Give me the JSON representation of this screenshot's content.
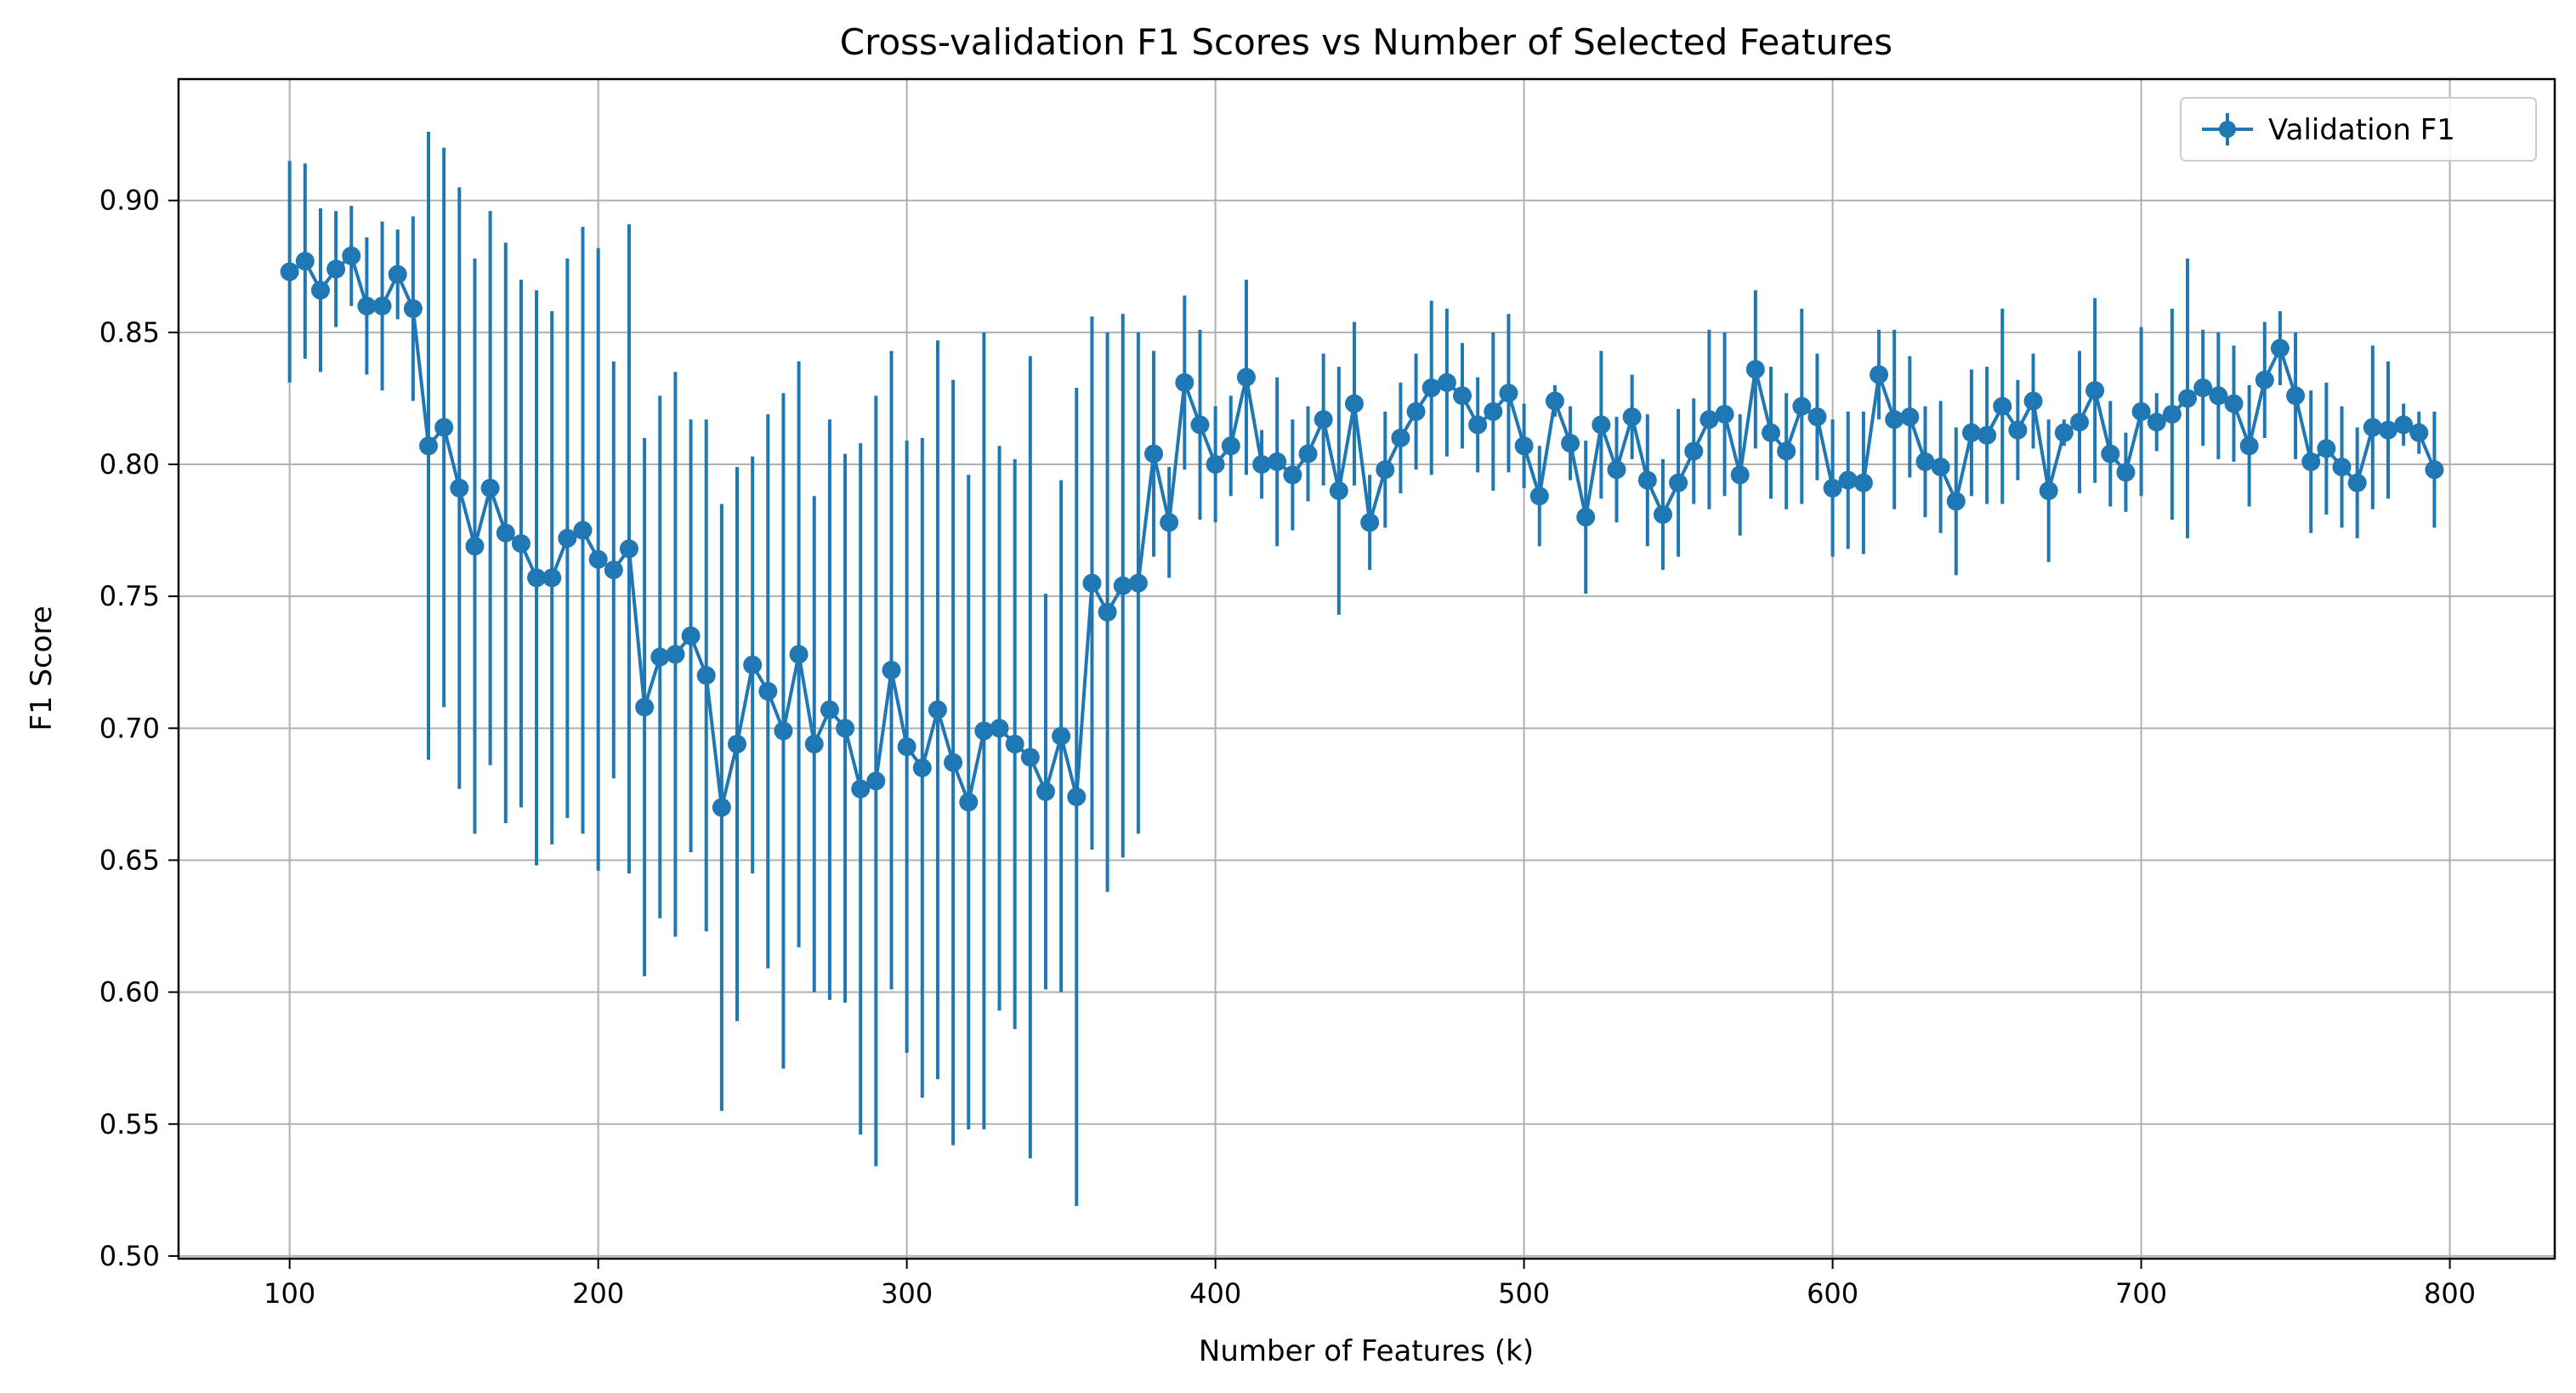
{
  "chart_data": {
    "type": "line",
    "title": "Cross-validation F1 Scores vs Number of Selected Features",
    "xlabel": "Number of Features (k)",
    "ylabel": "F1 Score",
    "xlim": [
      64,
      834
    ],
    "ylim": [
      0.499,
      0.946
    ],
    "xticks": [
      100,
      200,
      300,
      400,
      500,
      600,
      700,
      800
    ],
    "yticks": [
      0.5,
      0.55,
      0.6,
      0.65,
      0.7,
      0.75,
      0.8,
      0.85,
      0.9
    ],
    "grid": true,
    "legend_position": "top-right",
    "series": [
      {
        "name": "Validation F1",
        "color": "#1f77b4",
        "marker": "circle",
        "error_bars": true,
        "x": [
          100,
          105,
          110,
          115,
          120,
          125,
          130,
          135,
          140,
          145,
          150,
          155,
          160,
          165,
          170,
          175,
          180,
          185,
          190,
          195,
          200,
          205,
          210,
          215,
          220,
          225,
          230,
          235,
          240,
          245,
          250,
          255,
          260,
          265,
          270,
          275,
          280,
          285,
          290,
          295,
          300,
          305,
          310,
          315,
          320,
          325,
          330,
          335,
          340,
          345,
          350,
          355,
          360,
          365,
          370,
          375,
          380,
          385,
          390,
          395,
          400,
          405,
          410,
          415,
          420,
          425,
          430,
          435,
          440,
          445,
          450,
          455,
          460,
          465,
          470,
          475,
          480,
          485,
          490,
          495,
          500,
          505,
          510,
          515,
          520,
          525,
          530,
          535,
          540,
          545,
          550,
          555,
          560,
          565,
          570,
          575,
          580,
          585,
          590,
          595,
          600,
          605,
          610,
          615,
          620,
          625,
          630,
          635,
          640,
          645,
          650,
          655,
          660,
          665,
          670,
          675,
          680,
          685,
          690,
          695,
          700,
          705,
          710,
          715,
          720,
          725,
          730,
          735,
          740,
          745,
          750,
          755,
          760,
          765,
          770,
          775,
          780,
          785,
          790,
          795
        ],
        "y": [
          0.873,
          0.877,
          0.866,
          0.874,
          0.879,
          0.86,
          0.86,
          0.872,
          0.859,
          0.807,
          0.814,
          0.791,
          0.769,
          0.791,
          0.774,
          0.77,
          0.757,
          0.757,
          0.772,
          0.775,
          0.764,
          0.76,
          0.768,
          0.708,
          0.727,
          0.728,
          0.735,
          0.72,
          0.67,
          0.694,
          0.724,
          0.714,
          0.699,
          0.728,
          0.694,
          0.707,
          0.7,
          0.677,
          0.68,
          0.722,
          0.693,
          0.685,
          0.707,
          0.687,
          0.672,
          0.699,
          0.7,
          0.694,
          0.689,
          0.676,
          0.697,
          0.674,
          0.755,
          0.744,
          0.754,
          0.755,
          0.804,
          0.778,
          0.831,
          0.815,
          0.8,
          0.807,
          0.833,
          0.8,
          0.801,
          0.796,
          0.804,
          0.817,
          0.79,
          0.823,
          0.778,
          0.798,
          0.81,
          0.82,
          0.829,
          0.831,
          0.826,
          0.815,
          0.82,
          0.827,
          0.807,
          0.788,
          0.824,
          0.808,
          0.78,
          0.815,
          0.798,
          0.818,
          0.794,
          0.781,
          0.793,
          0.805,
          0.817,
          0.819,
          0.796,
          0.836,
          0.812,
          0.805,
          0.822,
          0.818,
          0.791,
          0.794,
          0.793,
          0.834,
          0.817,
          0.818,
          0.801,
          0.799,
          0.786,
          0.812,
          0.811,
          0.822,
          0.813,
          0.824,
          0.79,
          0.812,
          0.816,
          0.828,
          0.804,
          0.797,
          0.82,
          0.816,
          0.819,
          0.825,
          0.829,
          0.826,
          0.823,
          0.807,
          0.832,
          0.844,
          0.826,
          0.801,
          0.806,
          0.799,
          0.793,
          0.814,
          0.813,
          0.815,
          0.812,
          0.798
        ],
        "yerr": [
          0.042,
          0.037,
          0.031,
          0.022,
          0.019,
          0.026,
          0.032,
          0.017,
          0.035,
          0.119,
          0.106,
          0.114,
          0.109,
          0.105,
          0.11,
          0.1,
          0.109,
          0.101,
          0.106,
          0.115,
          0.118,
          0.079,
          0.123,
          0.102,
          0.099,
          0.107,
          0.082,
          0.097,
          0.115,
          0.105,
          0.079,
          0.105,
          0.128,
          0.111,
          0.094,
          0.11,
          0.104,
          0.131,
          0.146,
          0.121,
          0.116,
          0.125,
          0.14,
          0.145,
          0.124,
          0.151,
          0.107,
          0.108,
          0.152,
          0.075,
          0.097,
          0.155,
          0.101,
          0.106,
          0.103,
          0.095,
          0.039,
          0.021,
          0.033,
          0.036,
          0.022,
          0.019,
          0.037,
          0.013,
          0.032,
          0.021,
          0.018,
          0.025,
          0.047,
          0.031,
          0.018,
          0.022,
          0.021,
          0.022,
          0.033,
          0.028,
          0.02,
          0.018,
          0.03,
          0.03,
          0.016,
          0.019,
          0.006,
          0.014,
          0.029,
          0.028,
          0.02,
          0.016,
          0.025,
          0.021,
          0.028,
          0.02,
          0.034,
          0.031,
          0.023,
          0.03,
          0.025,
          0.022,
          0.037,
          0.024,
          0.026,
          0.026,
          0.027,
          0.017,
          0.034,
          0.023,
          0.021,
          0.025,
          0.028,
          0.024,
          0.026,
          0.037,
          0.019,
          0.018,
          0.027,
          0.005,
          0.027,
          0.035,
          0.02,
          0.015,
          0.032,
          0.011,
          0.04,
          0.053,
          0.022,
          0.024,
          0.022,
          0.023,
          0.022,
          0.014,
          0.024,
          0.027,
          0.025,
          0.023,
          0.021,
          0.031,
          0.026,
          0.008,
          0.008,
          0.022
        ]
      }
    ]
  }
}
